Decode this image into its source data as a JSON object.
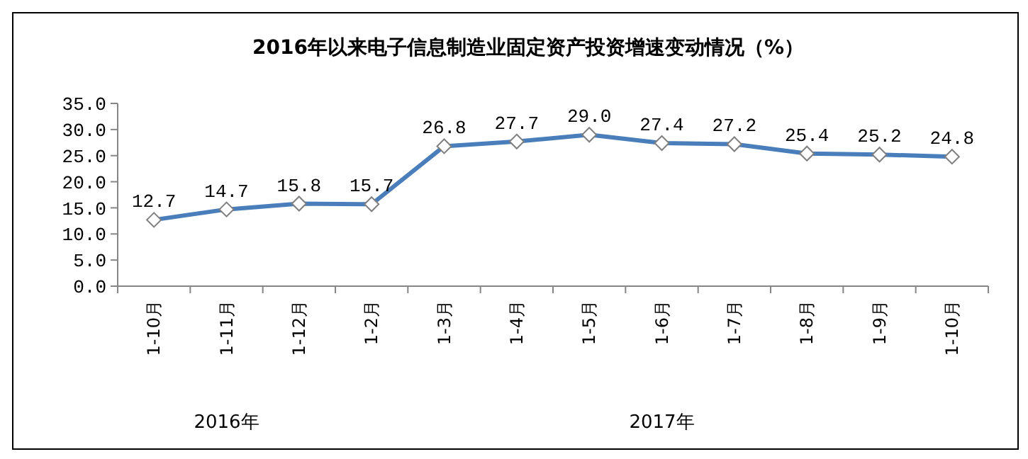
{
  "chart_data": {
    "type": "line",
    "title": "2016年以来电子信息制造业固定资产投资增速变动情况（%）",
    "categories": [
      "1-10月",
      "1-11月",
      "1-12月",
      "1-2月",
      "1-3月",
      "1-4月",
      "1-5月",
      "1-6月",
      "1-7月",
      "1-8月",
      "1-9月",
      "1-10月"
    ],
    "series": [
      {
        "color": "#4a7ebb",
        "values": [
          12.7,
          14.7,
          15.8,
          15.7,
          26.8,
          27.7,
          29.0,
          27.4,
          27.2,
          25.4,
          25.2,
          24.8
        ],
        "value_labels": [
          "12.7",
          "14.7",
          "15.8",
          "15.7",
          "26.8",
          "27.7",
          "29.0",
          "27.4",
          "27.2",
          "25.4",
          "25.2",
          "24.8"
        ]
      }
    ],
    "ylim": [
      0,
      35
    ],
    "yticks": [
      {
        "value": 0,
        "label": "0.0"
      },
      {
        "value": 5,
        "label": "5.0"
      },
      {
        "value": 10,
        "label": "10.0"
      },
      {
        "value": 15,
        "label": "15.0"
      },
      {
        "value": 20,
        "label": "20.0"
      },
      {
        "value": 25,
        "label": "25.0"
      },
      {
        "value": 30,
        "label": "30.0"
      },
      {
        "value": 35,
        "label": "35.0"
      }
    ],
    "annotations": [
      "2016年",
      "2017年"
    ],
    "marker": "diamond",
    "line_style": "solid"
  }
}
